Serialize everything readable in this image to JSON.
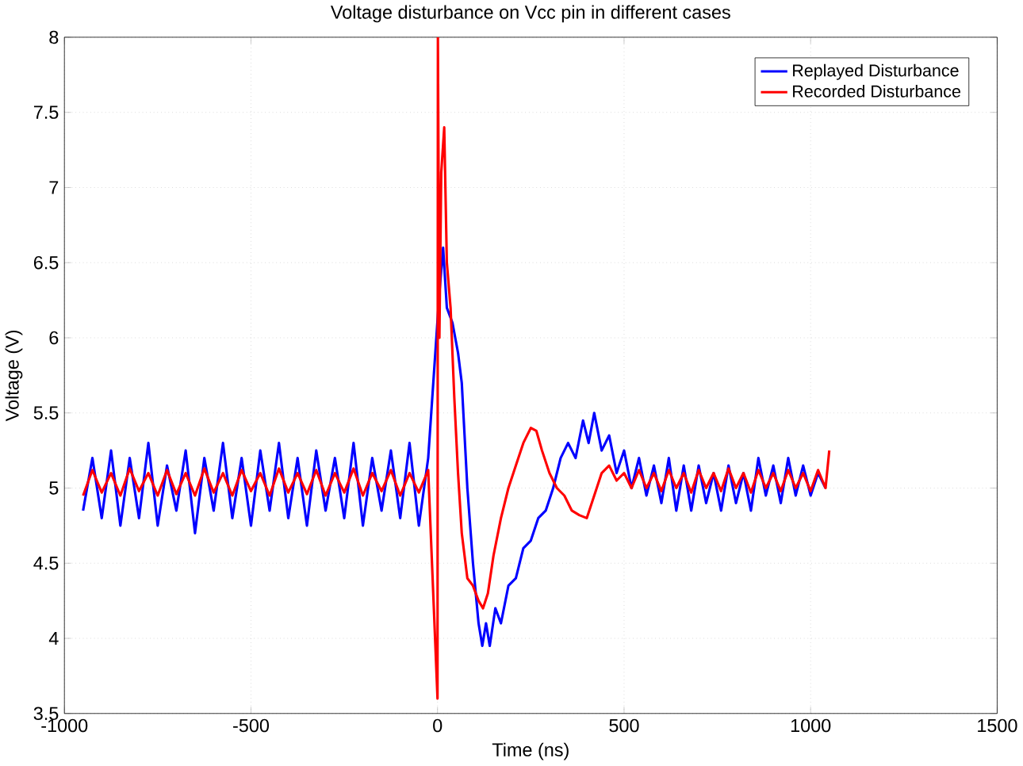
{
  "chart_data": {
    "type": "line",
    "title": "Voltage disturbance on Vcc pin in different cases",
    "xlabel": "Time (ns)",
    "ylabel": "Voltage (V)",
    "xlim": [
      -1000,
      1500
    ],
    "ylim": [
      3.5,
      8
    ],
    "xticks": [
      -1000,
      -500,
      0,
      500,
      1000,
      1500
    ],
    "yticks": [
      3.5,
      4,
      4.5,
      5,
      5.5,
      6,
      6.5,
      7,
      7.5,
      8
    ],
    "grid": true,
    "legend": "top right",
    "marker": "none",
    "line_style": "solid",
    "series": [
      {
        "name": "Replayed Disturbance",
        "color": "#0000ff",
        "x": [
          -950,
          -925,
          -900,
          -875,
          -850,
          -825,
          -800,
          -775,
          -750,
          -725,
          -700,
          -675,
          -650,
          -625,
          -600,
          -575,
          -550,
          -525,
          -500,
          -475,
          -450,
          -425,
          -400,
          -375,
          -350,
          -325,
          -300,
          -275,
          -250,
          -225,
          -200,
          -175,
          -150,
          -125,
          -100,
          -75,
          -50,
          -25,
          5,
          15,
          25,
          40,
          55,
          65,
          80,
          95,
          110,
          120,
          130,
          140,
          155,
          170,
          190,
          210,
          230,
          250,
          270,
          290,
          310,
          330,
          350,
          370,
          390,
          405,
          420,
          440,
          460,
          480,
          500,
          520,
          540,
          560,
          580,
          600,
          620,
          640,
          660,
          680,
          700,
          720,
          740,
          760,
          780,
          800,
          820,
          840,
          860,
          880,
          900,
          920,
          940,
          960,
          980,
          1000,
          1020,
          1040
        ],
        "values": [
          4.85,
          5.2,
          4.8,
          5.25,
          4.75,
          5.2,
          4.8,
          5.3,
          4.75,
          5.15,
          4.85,
          5.25,
          4.7,
          5.2,
          4.85,
          5.3,
          4.8,
          5.2,
          4.75,
          5.25,
          4.85,
          5.3,
          4.8,
          5.2,
          4.75,
          5.25,
          4.85,
          5.2,
          4.8,
          5.3,
          4.75,
          5.2,
          4.85,
          5.25,
          4.8,
          5.3,
          4.75,
          5.2,
          6.3,
          6.6,
          6.2,
          6.1,
          5.9,
          5.7,
          5.0,
          4.5,
          4.1,
          3.95,
          4.1,
          3.95,
          4.2,
          4.1,
          4.35,
          4.4,
          4.6,
          4.65,
          4.8,
          4.85,
          5.0,
          5.2,
          5.3,
          5.2,
          5.45,
          5.3,
          5.5,
          5.25,
          5.35,
          5.1,
          5.25,
          5.0,
          5.2,
          4.95,
          5.15,
          4.9,
          5.2,
          4.85,
          5.15,
          4.85,
          5.15,
          4.9,
          5.1,
          4.85,
          5.15,
          4.9,
          5.1,
          4.85,
          5.2,
          4.95,
          5.15,
          4.9,
          5.2,
          4.95,
          5.15,
          4.95,
          5.1,
          5.0
        ]
      },
      {
        "name": "Recorded Disturbance",
        "color": "#ff0000",
        "x": [
          -950,
          -925,
          -900,
          -875,
          -850,
          -825,
          -800,
          -775,
          -750,
          -725,
          -700,
          -675,
          -650,
          -625,
          -600,
          -575,
          -550,
          -525,
          -500,
          -475,
          -450,
          -425,
          -400,
          -375,
          -350,
          -325,
          -300,
          -275,
          -250,
          -225,
          -200,
          -175,
          -150,
          -125,
          -100,
          -75,
          -50,
          -25,
          0,
          1,
          5,
          10,
          18,
          25,
          35,
          45,
          55,
          65,
          80,
          95,
          110,
          122,
          135,
          150,
          170,
          190,
          210,
          230,
          250,
          265,
          280,
          300,
          320,
          340,
          360,
          380,
          400,
          420,
          440,
          460,
          480,
          500,
          520,
          540,
          560,
          580,
          600,
          620,
          640,
          660,
          680,
          700,
          720,
          740,
          760,
          780,
          800,
          820,
          840,
          860,
          880,
          900,
          920,
          940,
          960,
          980,
          1000,
          1020,
          1040,
          1050
        ],
        "values": [
          4.95,
          5.12,
          4.97,
          5.1,
          4.95,
          5.13,
          4.98,
          5.1,
          4.95,
          5.12,
          4.96,
          5.1,
          4.95,
          5.13,
          4.97,
          5.1,
          4.95,
          5.12,
          4.98,
          5.1,
          4.95,
          5.13,
          4.97,
          5.1,
          4.96,
          5.12,
          4.95,
          5.1,
          4.97,
          5.13,
          4.95,
          5.1,
          4.98,
          5.12,
          4.95,
          5.1,
          4.97,
          5.12,
          3.6,
          8.0,
          6.0,
          7.1,
          7.4,
          6.5,
          6.2,
          5.6,
          5.1,
          4.7,
          4.4,
          4.35,
          4.25,
          4.2,
          4.3,
          4.55,
          4.8,
          5.0,
          5.15,
          5.3,
          5.4,
          5.38,
          5.25,
          5.1,
          5.0,
          4.95,
          4.85,
          4.82,
          4.8,
          4.95,
          5.1,
          5.15,
          5.05,
          5.1,
          5.0,
          5.12,
          5.0,
          5.1,
          4.98,
          5.12,
          5.0,
          5.1,
          4.97,
          5.12,
          5.0,
          5.1,
          4.98,
          5.13,
          5.0,
          5.1,
          4.97,
          5.12,
          5.0,
          5.1,
          4.98,
          5.12,
          5.0,
          5.1,
          4.98,
          5.12,
          5.0,
          5.25
        ]
      }
    ]
  }
}
